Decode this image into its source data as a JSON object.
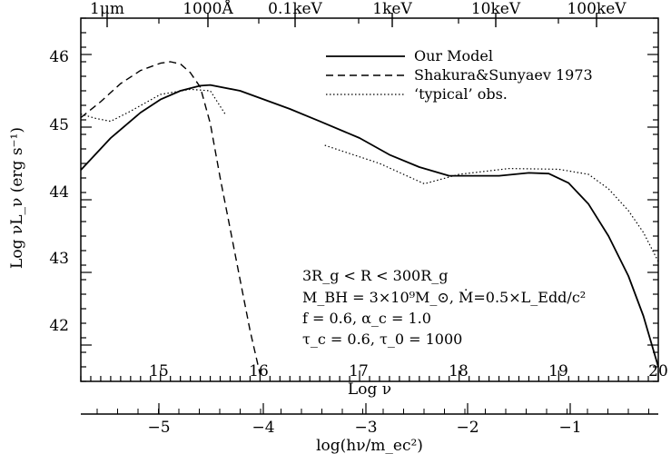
{
  "chart_data": {
    "type": "line",
    "xlabel": "Log ν",
    "ylabel": "Log νL_ν (erg s⁻¹)",
    "xlim": [
      14.2,
      20.0
    ],
    "ylim": [
      41.5,
      46.5
    ],
    "x_ticks": [
      "15",
      "16",
      "17",
      "18",
      "19",
      "20"
    ],
    "y_ticks": [
      "42",
      "43",
      "44",
      "45",
      "46"
    ],
    "top_axis_labels": [
      "1μm",
      "1000Å",
      "0.1keV",
      "1keV",
      "10keV",
      "100keV"
    ],
    "bottom_axis": {
      "label": "log(hν/m_ec²)",
      "ticks": [
        "−5",
        "−4",
        "−3",
        "−2",
        "−1"
      ]
    },
    "legend": {
      "position": "top-right",
      "entries": [
        "Our Model",
        "Shakura&Sunyaev 1973",
        "‘typical’ obs."
      ]
    },
    "series": [
      {
        "name": "Our Model",
        "style": "solid",
        "x": [
          14.2,
          14.5,
          14.8,
          15.0,
          15.2,
          15.4,
          15.5,
          15.8,
          16.0,
          16.3,
          16.6,
          17.0,
          17.3,
          17.6,
          17.9,
          18.1,
          18.4,
          18.7,
          18.9,
          19.1,
          19.3,
          19.5,
          19.7,
          19.85,
          20.0
        ],
        "y": [
          44.41,
          44.85,
          45.2,
          45.38,
          45.5,
          45.57,
          45.58,
          45.5,
          45.4,
          45.25,
          45.08,
          44.85,
          44.62,
          44.45,
          44.33,
          44.33,
          44.33,
          44.37,
          44.36,
          44.23,
          43.94,
          43.5,
          42.95,
          42.4,
          41.7
        ]
      },
      {
        "name": "Shakura&Sunyaev 1973",
        "style": "dashed",
        "x": [
          14.2,
          14.4,
          14.6,
          14.8,
          15.0,
          15.1,
          15.2,
          15.3,
          15.4,
          15.5,
          15.6,
          15.7,
          15.8,
          15.9,
          16.0
        ],
        "y": [
          45.13,
          45.35,
          45.6,
          45.78,
          45.88,
          45.9,
          45.87,
          45.75,
          45.55,
          45.05,
          44.3,
          43.6,
          42.9,
          42.2,
          41.6
        ]
      },
      {
        "name": "‘typical’ obs.",
        "style": "dotted",
        "segments": [
          {
            "x": [
              14.2,
              14.35,
              14.5,
              14.7,
              15.0,
              15.3,
              15.5,
              15.65
            ],
            "y": [
              45.18,
              45.12,
              45.08,
              45.22,
              45.45,
              45.52,
              45.5,
              45.18
            ]
          },
          {
            "x": [
              16.65,
              17.2,
              17.65,
              18.0,
              18.5,
              19.0,
              19.3,
              19.5,
              19.7,
              19.85,
              20.0
            ],
            "y": [
              44.75,
              44.5,
              44.22,
              44.35,
              44.43,
              44.42,
              44.35,
              44.15,
              43.85,
              43.55,
              43.15
            ]
          }
        ]
      }
    ],
    "annotations": [
      "3R_g < R < 300R_g",
      "M_BH = 3×10⁹M_⊙, Ṁ=0.5×L_Edd/c²",
      "f = 0.6, α_c = 1.0",
      "τ_c = 0.6, τ_0 = 1000"
    ],
    "grid": false
  }
}
